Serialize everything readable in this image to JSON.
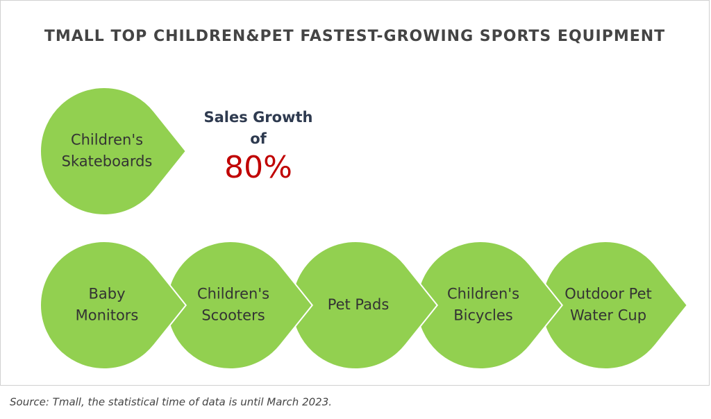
{
  "header": {
    "title": "TMALL TOP CHILDREN&PET FASTEST-GROWING SPORTS EQUIPMENT"
  },
  "highlight": {
    "item": [
      "Children's",
      "Skateboards"
    ],
    "label": [
      "Sales Growth",
      "of"
    ],
    "value": "80%"
  },
  "items": [
    [
      "Baby",
      "Monitors"
    ],
    [
      "Children's",
      "Scooters"
    ],
    [
      "Pet Pads"
    ],
    [
      "Children's",
      "Bicycles"
    ],
    [
      "Outdoor Pet",
      "Water Cup"
    ]
  ],
  "footer": {
    "source": "Source: Tmall, the statistical time of data is until March 2023."
  }
}
